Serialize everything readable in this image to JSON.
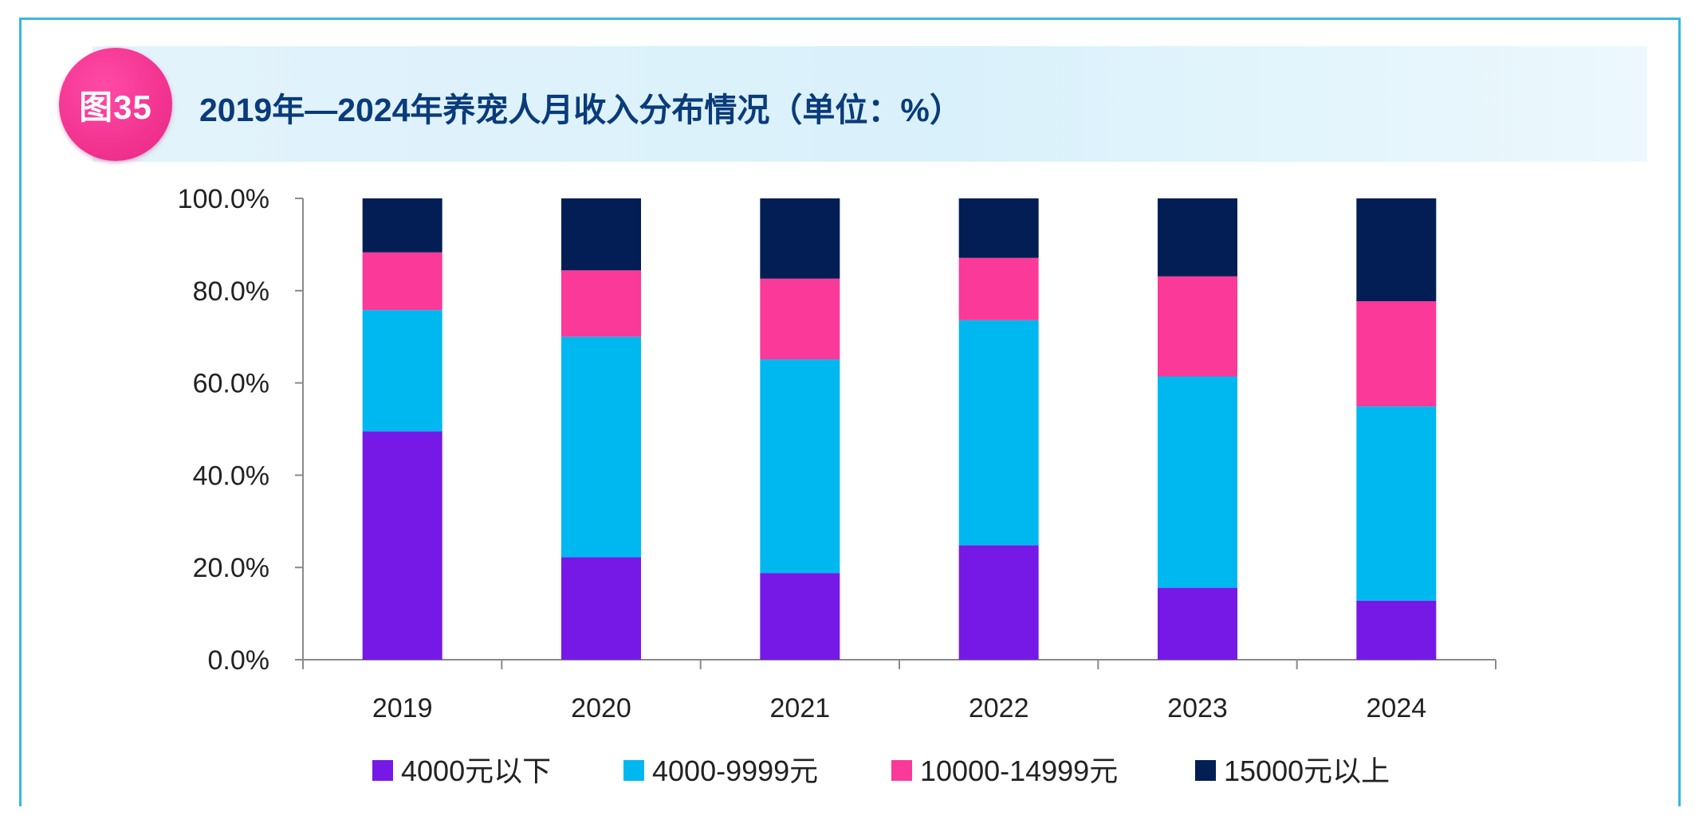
{
  "figure": {
    "badge": "图35",
    "title": "2019年—2024年养宠人月收入分布情况（单位：%）"
  },
  "chart_data": {
    "type": "bar",
    "stacked": true,
    "categories": [
      "2019",
      "2020",
      "2021",
      "2022",
      "2023",
      "2024"
    ],
    "series": [
      {
        "name": "4000元以下",
        "color": "#7719e6",
        "values": [
          49.5,
          22.2,
          18.8,
          24.8,
          15.6,
          12.8
        ]
      },
      {
        "name": "4000-9999元",
        "color": "#00b8f0",
        "values": [
          26.3,
          47.8,
          46.3,
          48.8,
          45.8,
          42.1
        ]
      },
      {
        "name": "10000-14999元",
        "color": "#fb3999",
        "values": [
          12.5,
          14.4,
          17.5,
          13.5,
          21.7,
          22.8
        ]
      },
      {
        "name": "15000元以上",
        "color": "#021e55",
        "values": [
          11.7,
          15.6,
          17.4,
          12.9,
          16.9,
          22.3
        ]
      }
    ],
    "ylim": [
      0,
      100
    ],
    "yticks": [
      "0.0%",
      "20.0%",
      "40.0%",
      "60.0%",
      "80.0%",
      "100.0%"
    ],
    "xlabel": "",
    "ylabel": "",
    "grid": false,
    "legend": "bottom"
  }
}
